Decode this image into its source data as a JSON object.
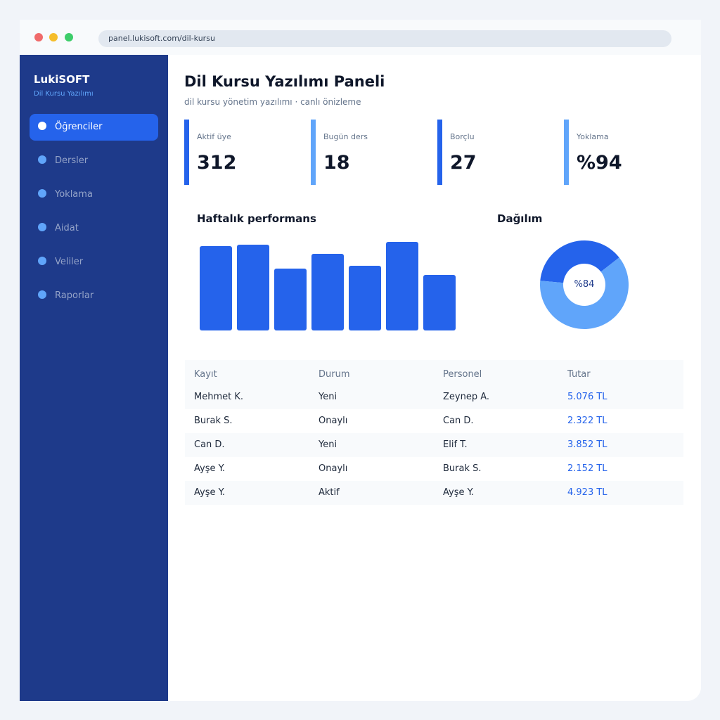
{
  "browser": {
    "url": "panel.lukisoft.com/dil-kursu"
  },
  "sidebar": {
    "brand": "LukiSOFT",
    "brand_sub": "Dil Kursu Yazılımı",
    "items": [
      {
        "label": "Öğrenciler",
        "active": true
      },
      {
        "label": "Dersler"
      },
      {
        "label": "Yoklama"
      },
      {
        "label": "Aidat"
      },
      {
        "label": "Veliler"
      },
      {
        "label": "Raporlar"
      }
    ]
  },
  "header": {
    "title": "Dil Kursu Yazılımı Paneli",
    "subtitle": "dil kursu yönetim yazılımı · canlı önizleme"
  },
  "stats": [
    {
      "label": "Aktif üye",
      "value": "312",
      "color": "#2563eb"
    },
    {
      "label": "Bugün ders",
      "value": "18",
      "color": "#60a5fa"
    },
    {
      "label": "Borçlu",
      "value": "27",
      "color": "#2563eb"
    },
    {
      "label": "Yoklama",
      "value": "%94",
      "color": "#60a5fa"
    }
  ],
  "performance": {
    "title": "Haftalık performans",
    "chart_data": {
      "type": "bar",
      "values": [
        92,
        94,
        68,
        84,
        71,
        97,
        61
      ],
      "ylim": [
        0,
        100
      ],
      "color": "#2563eb"
    }
  },
  "distribution": {
    "title": "Dağılım",
    "label": "%84",
    "chart_data": {
      "type": "pie",
      "slices": [
        38,
        62
      ],
      "colors": [
        "#2563eb",
        "#60a5fa"
      ]
    }
  },
  "table": {
    "headers": [
      "Kayıt",
      "Durum",
      "Personel",
      "Tutar"
    ],
    "rows": [
      [
        "Mehmet K.",
        "Yeni",
        "Zeynep A.",
        "5.076 TL"
      ],
      [
        "Burak S.",
        "Onaylı",
        "Can D.",
        "2.322 TL"
      ],
      [
        "Can D.",
        "Yeni",
        "Elif T.",
        "3.852 TL"
      ],
      [
        "Ayşe Y.",
        "Onaylı",
        "Burak S.",
        "2.152 TL"
      ],
      [
        "Ayşe Y.",
        "Aktif",
        "Ayşe Y.",
        "4.923 TL"
      ]
    ]
  }
}
